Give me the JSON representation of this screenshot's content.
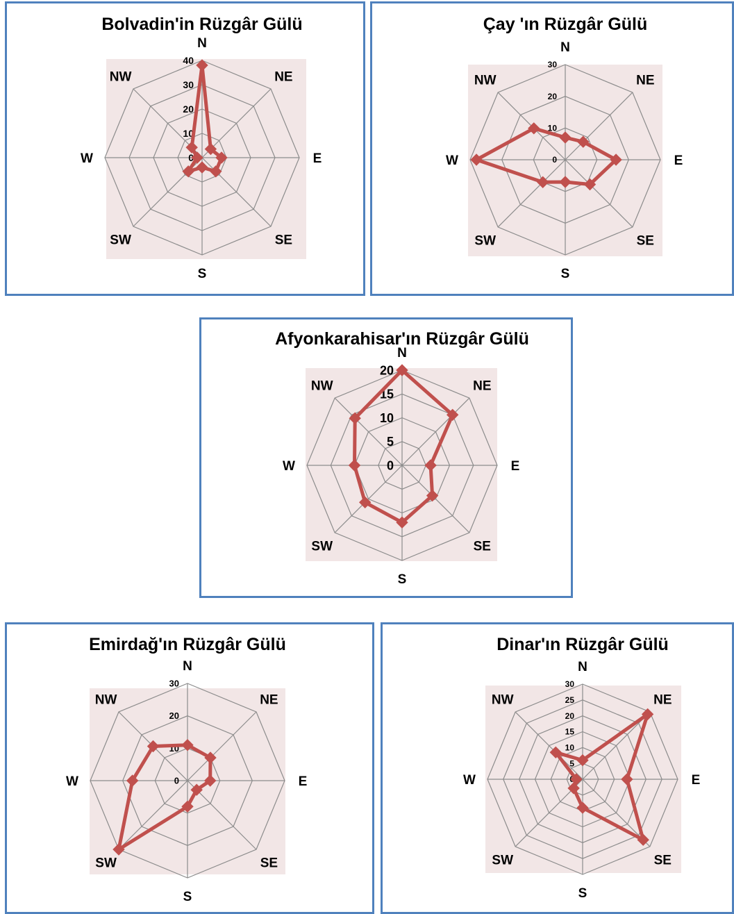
{
  "colors": {
    "border": "#4f81bd",
    "plot_bg": "#f2e6e6",
    "grid": "#8c8c8c",
    "series": "#c0504d"
  },
  "chart_data": [
    {
      "type": "radar",
      "title": "Bolvadin'in Rüzgâr Gülü",
      "directions": [
        "N",
        "NE",
        "E",
        "SE",
        "S",
        "SW",
        "W",
        "NW"
      ],
      "ticks": [
        "0",
        "10",
        "20",
        "30",
        "40"
      ],
      "rmax": 40,
      "values": [
        38,
        5,
        8,
        8,
        4,
        8,
        2,
        6
      ],
      "legend": "none"
    },
    {
      "type": "radar",
      "title": "Çay 'ın Rüzgâr Gülü",
      "directions": [
        "N",
        "NE",
        "E",
        "SE",
        "S",
        "SW",
        "W",
        "NW"
      ],
      "ticks": [
        "0",
        "10",
        "20",
        "30"
      ],
      "rmax": 30,
      "values": [
        7,
        8,
        16,
        11,
        7,
        10,
        28,
        14
      ],
      "legend": "none"
    },
    {
      "type": "radar",
      "title": "Afyonkarahisar'ın Rüzgâr Gülü",
      "directions": [
        "N",
        "NE",
        "E",
        "SE",
        "S",
        "SW",
        "W",
        "NW"
      ],
      "ticks": [
        "0",
        "5",
        "10",
        "15",
        "20"
      ],
      "rmax": 20,
      "values": [
        20,
        15,
        6,
        9,
        12,
        11,
        10,
        14
      ],
      "legend": "none"
    },
    {
      "type": "radar",
      "title": "Emirdağ'ın Rüzgâr Gülü",
      "directions": [
        "N",
        "NE",
        "E",
        "SE",
        "S",
        "SW",
        "W",
        "NW"
      ],
      "ticks": [
        "0",
        "10",
        "20",
        "30"
      ],
      "rmax": 30,
      "values": [
        11,
        10,
        7,
        4,
        8,
        30,
        17,
        15
      ],
      "legend": "none"
    },
    {
      "type": "radar",
      "title": "Dinar'ın Rüzgâr Gülü",
      "directions": [
        "N",
        "NE",
        "E",
        "SE",
        "S",
        "SW",
        "W",
        "NW"
      ],
      "ticks": [
        "0",
        "5",
        "10",
        "15",
        "20",
        "25",
        "30"
      ],
      "rmax": 30,
      "values": [
        6,
        29,
        14,
        27,
        9,
        4,
        2,
        12
      ],
      "legend": "none"
    }
  ]
}
